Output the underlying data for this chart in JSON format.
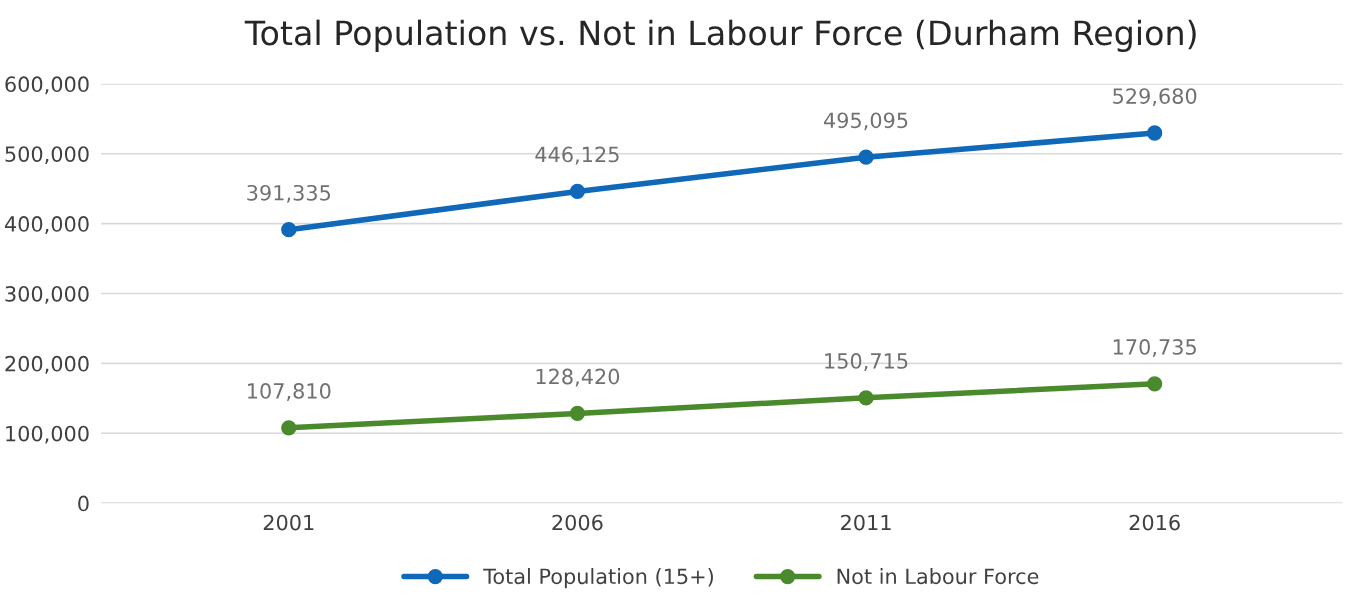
{
  "chart_data": {
    "type": "line",
    "title": "Total Population vs. Not in Labour Force (Durham Region)",
    "categories": [
      "2001",
      "2006",
      "2011",
      "2016"
    ],
    "series": [
      {
        "name": "Total Population (15+)",
        "color": "#1068b8",
        "values": [
          391335,
          446125,
          495095,
          529680
        ],
        "value_labels": [
          "391,335",
          "446,125",
          "495,095",
          "529,680"
        ]
      },
      {
        "name": "Not in Labour Force",
        "color": "#4a8a2c",
        "values": [
          107810,
          128420,
          150715,
          170735
        ],
        "value_labels": [
          "107,810",
          "128,420",
          "150,715",
          "170,735"
        ]
      }
    ],
    "ylim": [
      0,
      600000
    ],
    "yticks": [
      0,
      {
        "value": 100000,
        "label": "100,000"
      },
      {
        "value": 200000,
        "label": "200,000"
      },
      {
        "value": 300000,
        "label": "300,000"
      },
      {
        "value": 400000,
        "label": "400,000"
      },
      {
        "value": 500000,
        "label": "500,000"
      },
      {
        "value": 600000,
        "label": "600,000"
      }
    ],
    "grid": "y",
    "legend": "bottom",
    "marker": "circle",
    "line_style": "solid"
  }
}
